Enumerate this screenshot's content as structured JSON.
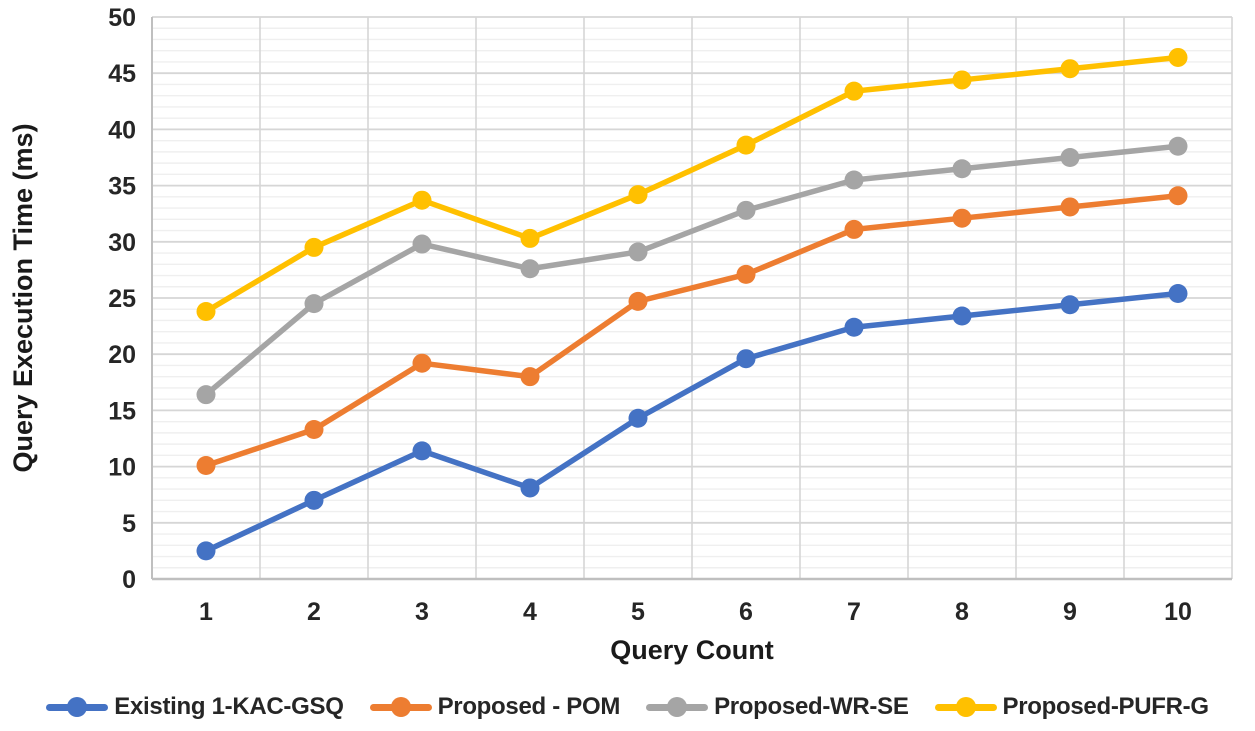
{
  "chart_data": {
    "type": "line",
    "title": "",
    "xlabel": "Query Count",
    "ylabel": "Query Execution Time (ms)",
    "x": [
      1,
      2,
      3,
      4,
      5,
      6,
      7,
      8,
      9,
      10
    ],
    "x_tick_labels": [
      "1",
      "2",
      "3",
      "4",
      "5",
      "6",
      "7",
      "8",
      "9",
      "10"
    ],
    "y_tick_labels": [
      "0",
      "5",
      "10",
      "15",
      "20",
      "25",
      "30",
      "35",
      "40",
      "45",
      "50"
    ],
    "ylim": [
      0,
      50
    ],
    "y_major_step": 5,
    "y_minor_step": 1,
    "grid": {
      "horizontal_major": true,
      "horizontal_minor": true,
      "vertical_category_boundaries": true
    },
    "legend_position": "bottom",
    "series": [
      {
        "name": "Existing 1-KAC-GSQ",
        "color": "#4472C4",
        "values": [
          2.5,
          7.0,
          11.4,
          8.1,
          14.3,
          19.6,
          22.4,
          23.4,
          24.4,
          25.4
        ]
      },
      {
        "name": "Proposed - POM",
        "color": "#ED7D31",
        "values": [
          10.1,
          13.3,
          19.2,
          18.0,
          24.7,
          27.1,
          31.1,
          32.1,
          33.1,
          34.1
        ]
      },
      {
        "name": "Proposed-WR-SE",
        "color": "#A5A5A5",
        "values": [
          16.4,
          24.5,
          29.8,
          27.6,
          29.1,
          32.8,
          35.5,
          36.5,
          37.5,
          38.5
        ]
      },
      {
        "name": "Proposed-PUFR-G",
        "color": "#FFC000",
        "values": [
          23.8,
          29.5,
          33.7,
          30.3,
          34.2,
          38.6,
          43.4,
          44.4,
          45.4,
          46.4
        ]
      }
    ],
    "style_colors": {
      "minor_gridline": "#efefef",
      "major_gridline": "#d6d6d6",
      "axis_line": "#bfbfbf",
      "background": "#ffffff"
    }
  }
}
